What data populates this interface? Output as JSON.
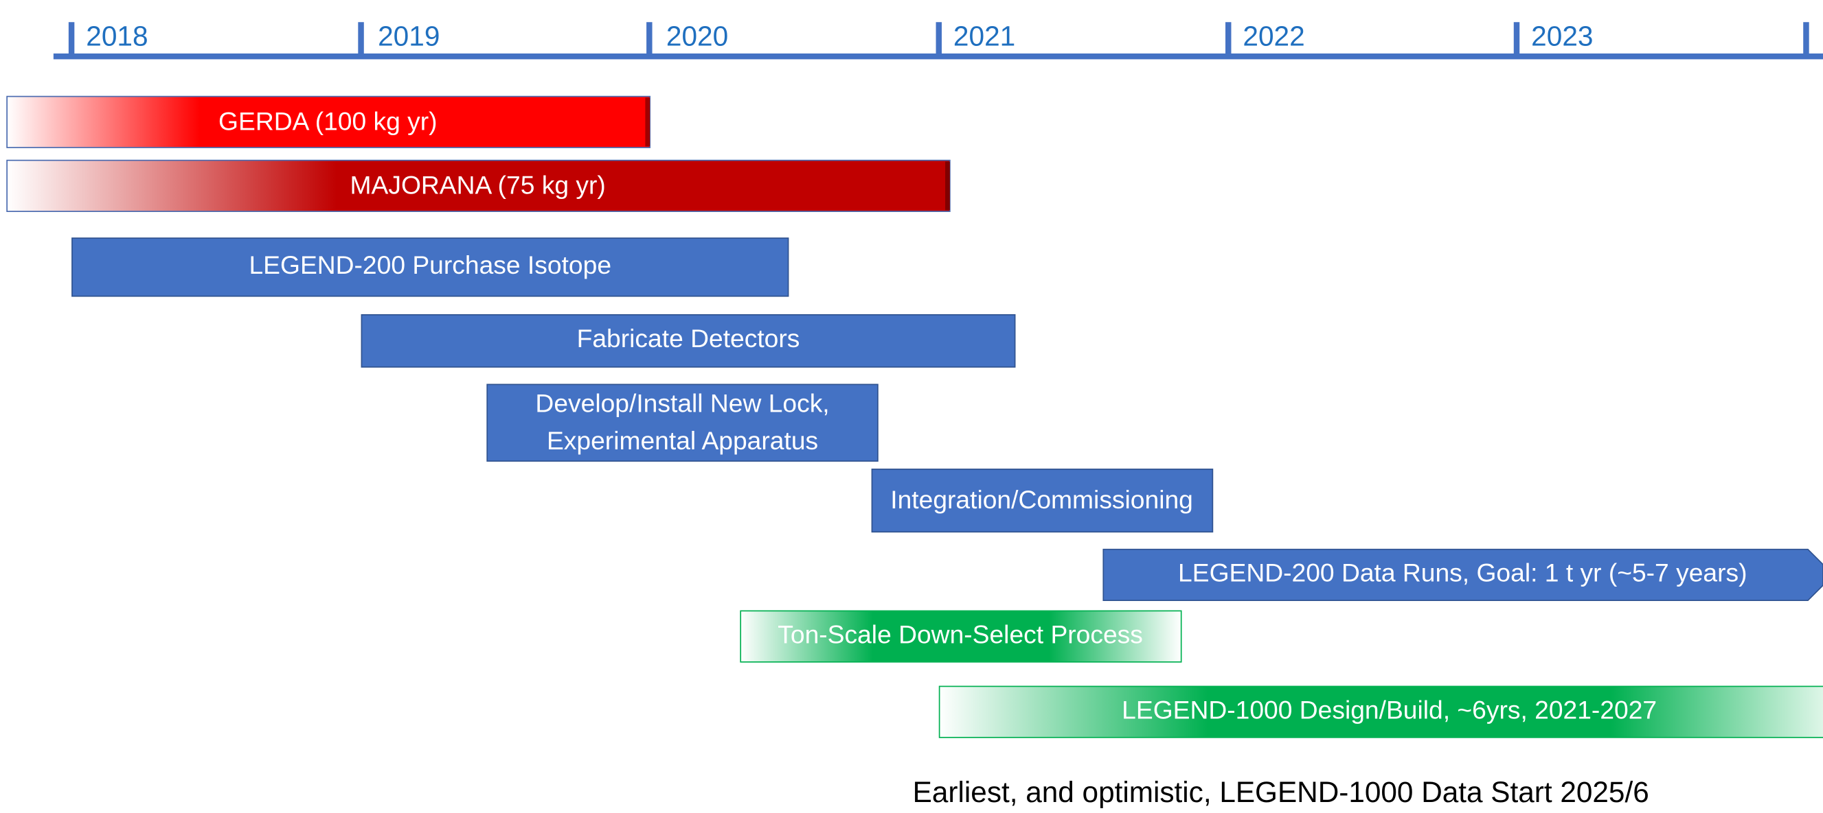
{
  "timeline": {
    "years": [
      "2018",
      "2019",
      "2020",
      "2021",
      "2022",
      "2023"
    ]
  },
  "bars": [
    {
      "lines": [
        "GERDA (100 kg yr)"
      ]
    },
    {
      "lines": [
        "MAJORANA (75 kg yr)"
      ]
    },
    {
      "lines": [
        "LEGEND-200 Purchase Isotope"
      ]
    },
    {
      "lines": [
        "Fabricate Detectors"
      ]
    },
    {
      "lines": [
        "Develop/Install New Lock,",
        "Experimental Apparatus"
      ]
    },
    {
      "lines": [
        "Integration/Commissioning"
      ]
    },
    {
      "lines": [
        "LEGEND-200 Data Runs, Goal: 1 t yr (~5-7 years)"
      ]
    },
    {
      "lines": [
        "Ton-Scale Down-Select Process"
      ]
    },
    {
      "lines": [
        "LEGEND-1000 Design/Build, ~6yrs, 2021-2027"
      ]
    }
  ],
  "footnote": "Earliest, and optimistic, LEGEND-1000 Data Start 2025/6"
}
